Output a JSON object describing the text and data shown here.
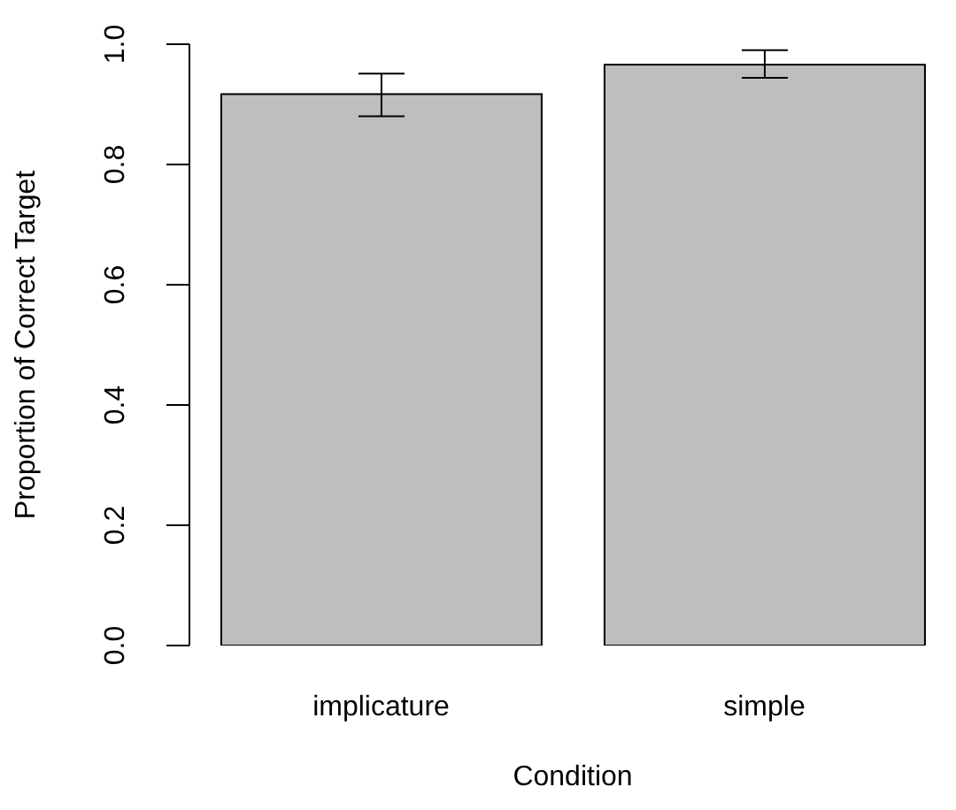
{
  "chart_data": {
    "type": "bar",
    "xlabel": "Condition",
    "ylabel": "Proportion of Correct Target",
    "categories": [
      "implicature",
      "simple"
    ],
    "values": [
      0.917,
      0.966
    ],
    "errors": [
      [
        0.88,
        0.951
      ],
      [
        0.944,
        0.99
      ]
    ],
    "color": "#bebebe",
    "ylim": [
      0,
      1
    ],
    "yticks": [
      {
        "value": 0,
        "label": "0.0"
      },
      {
        "value": 0.2,
        "label": "0.2"
      },
      {
        "value": 0.4,
        "label": "0.4"
      },
      {
        "value": 0.6,
        "label": "0.6"
      },
      {
        "value": 0.8,
        "label": "0.8"
      },
      {
        "value": 1,
        "label": "1.0"
      }
    ],
    "grid": false,
    "legend": false
  }
}
